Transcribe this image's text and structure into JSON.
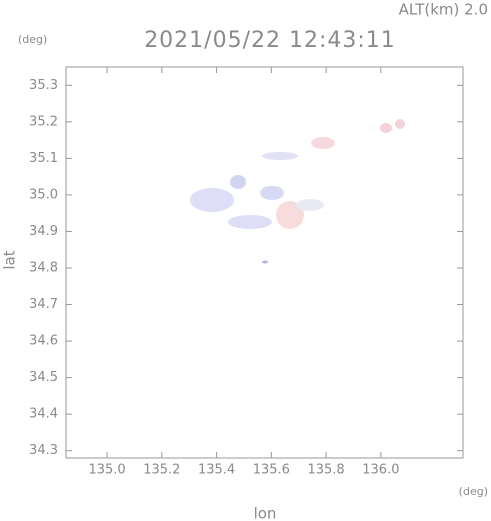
{
  "chart_data": {
    "type": "scatter",
    "title": "2021/05/22 12:43:11",
    "subtitle": "ALT(km)  2.0",
    "y_unit": "(deg)",
    "x_unit": "(deg)",
    "x_label": "lon",
    "y_label": "lat",
    "xlim": [
      134.85,
      136.3
    ],
    "ylim": [
      34.28,
      35.35
    ],
    "xticks": [
      {
        "value": 135.0,
        "label": "135.0"
      },
      135.2,
      135.4,
      135.6,
      135.8,
      {
        "value": 136.0,
        "label": "136.0"
      }
    ],
    "yticks": [
      34.3,
      34.4,
      34.5,
      34.6,
      34.7,
      34.8,
      34.9,
      {
        "value": 35.0,
        "label": "35.0"
      },
      35.1,
      35.2,
      35.3
    ]
  }
}
